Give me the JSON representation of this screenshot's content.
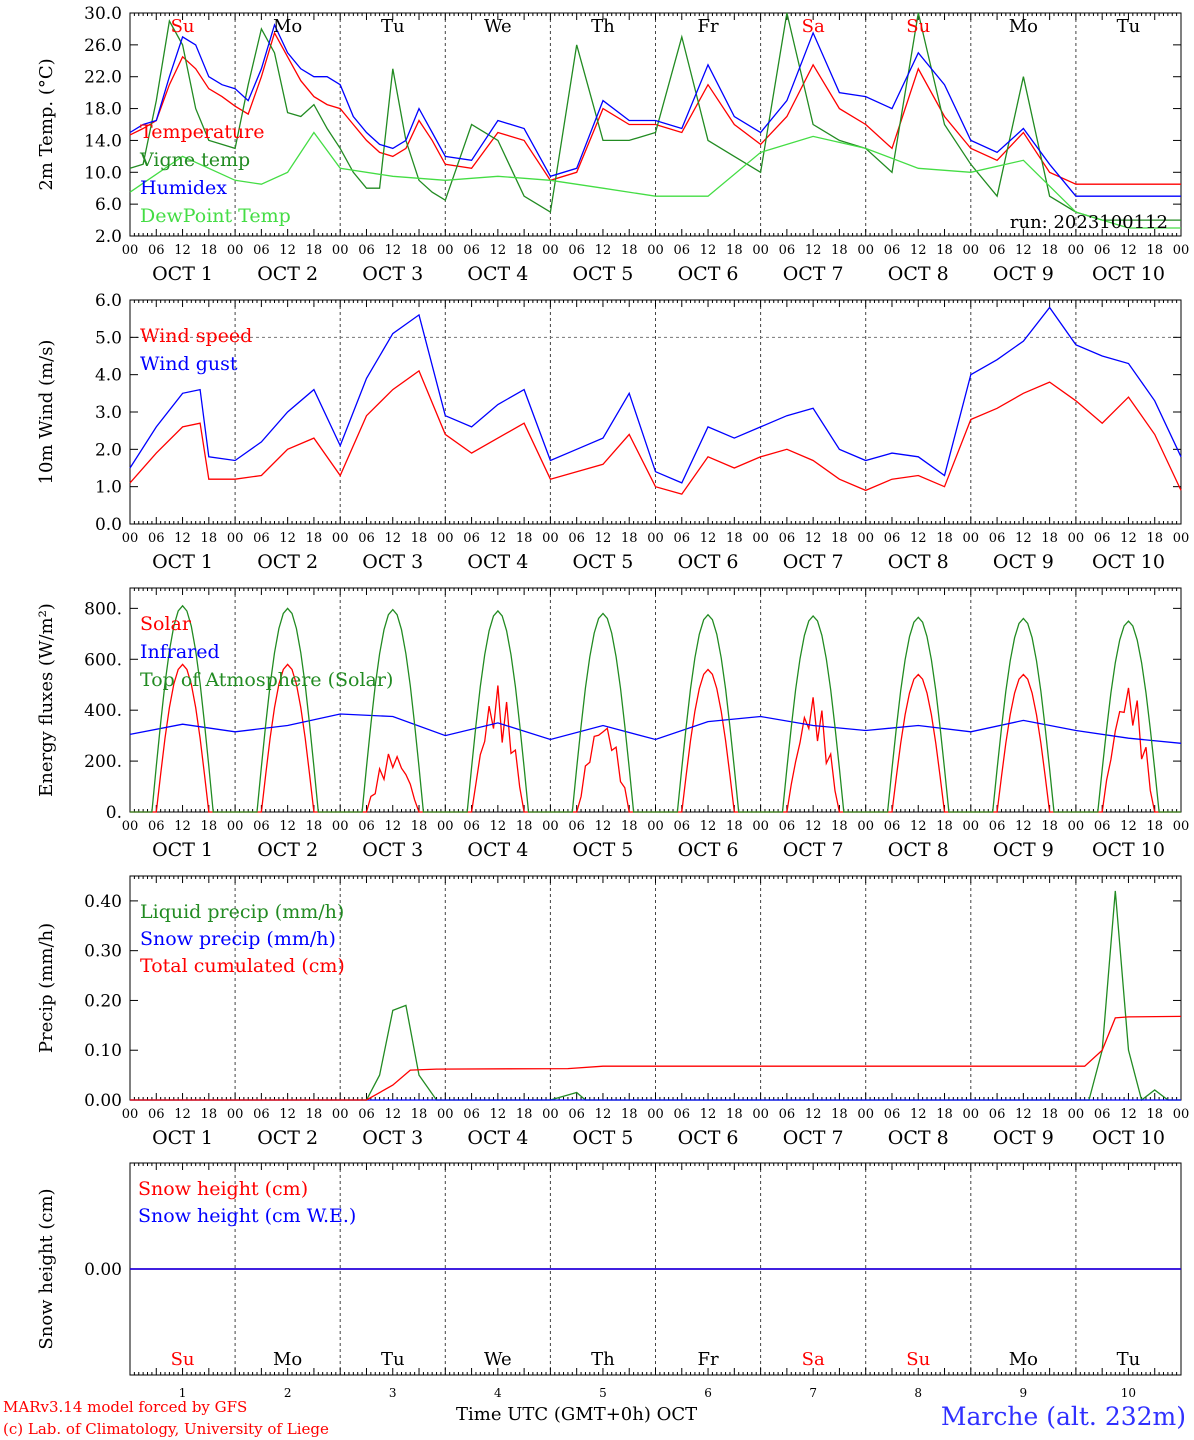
{
  "meta": {
    "run_label": "run: 2023100112",
    "footer_model": "MARv3.14 model forced by GFS",
    "footer_lab": "(c) Lab. of Climatology, University of Liege",
    "footer_xlabel": "Time UTC (GMT+0h) OCT",
    "footer_station": "Marche (alt. 232m)"
  },
  "axis": {
    "hour_ticks": [
      "00",
      "06",
      "12",
      "18"
    ],
    "final_tick": "00",
    "days": [
      1,
      2,
      3,
      4,
      5,
      6,
      7,
      8,
      9,
      10
    ],
    "month": "OCT",
    "weekdays": [
      {
        "label": "Su",
        "color": "#ff0000"
      },
      {
        "label": "Mo",
        "color": "#000000"
      },
      {
        "label": "Tu",
        "color": "#000000"
      },
      {
        "label": "We",
        "color": "#000000"
      },
      {
        "label": "Th",
        "color": "#000000"
      },
      {
        "label": "Fr",
        "color": "#000000"
      },
      {
        "label": "Sa",
        "color": "#ff0000"
      },
      {
        "label": "Su",
        "color": "#ff0000"
      },
      {
        "label": "Mo",
        "color": "#000000"
      },
      {
        "label": "Tu",
        "color": "#000000"
      }
    ]
  },
  "chart_data": [
    {
      "type": "line",
      "ylabel": "2m Temp. (°C)",
      "ylim": [
        2,
        30
      ],
      "yticks": [
        "2.0",
        "6.0",
        "10.0",
        "14.0",
        "18.0",
        "22.0",
        "26.0",
        "30.0"
      ],
      "x_unit": "hours since Oct 1 00 UTC",
      "refline": null,
      "series": [
        {
          "name": "Temperature",
          "color": "#ff0000",
          "x": [
            0,
            3,
            6,
            9,
            12,
            15,
            18,
            21,
            24,
            27,
            30,
            33,
            36,
            39,
            42,
            45,
            48,
            51,
            54,
            57,
            60,
            63,
            66,
            69,
            72,
            78,
            84,
            90,
            96,
            102,
            108,
            114,
            120,
            126,
            132,
            138,
            144,
            150,
            156,
            162,
            168,
            174,
            180,
            186,
            192,
            198,
            204,
            210,
            216,
            222,
            228,
            234,
            240
          ],
          "values": [
            14.7,
            15.5,
            16.5,
            21,
            24.5,
            23,
            20.5,
            19.5,
            18.3,
            17.3,
            22,
            27.5,
            24.5,
            21.5,
            19.5,
            18.5,
            18,
            16,
            14,
            12.5,
            12,
            13,
            16.5,
            14,
            11,
            10.5,
            15,
            14,
            9,
            10,
            18,
            16,
            16,
            15,
            21,
            16,
            13.5,
            17,
            23.5,
            18,
            16,
            13,
            23,
            17,
            13,
            11.5,
            15,
            10,
            8.5,
            8.5,
            8.5,
            8.5,
            8.5
          ],
          "note": "approximate daily cycle"
        },
        {
          "name": "Vigne temp",
          "color": "#228b22",
          "x": [
            0,
            3,
            6,
            9,
            12,
            15,
            18,
            21,
            24,
            27,
            30,
            33,
            36,
            39,
            42,
            45,
            48,
            51,
            54,
            57,
            60,
            63,
            66,
            69,
            72,
            78,
            84,
            90,
            96,
            102,
            108,
            114,
            120,
            126,
            132,
            138,
            144,
            150,
            156,
            162,
            168,
            174,
            180,
            186,
            192,
            198,
            204,
            210,
            216,
            222,
            228,
            234,
            240
          ],
          "values": [
            10.5,
            11,
            19,
            29,
            26,
            18,
            14,
            13.5,
            13,
            21,
            28,
            25,
            17.5,
            17,
            18.5,
            15.5,
            13,
            10,
            8,
            8,
            23,
            14,
            9,
            7.5,
            6.5,
            16,
            14,
            7,
            5,
            26,
            14,
            14,
            15,
            27,
            14,
            12,
            10,
            30,
            16,
            14,
            13,
            10,
            30,
            16,
            11,
            7,
            22,
            7,
            5,
            4,
            4,
            4,
            4
          ]
        },
        {
          "name": "Humidex",
          "color": "#0000ff",
          "x": [
            0,
            3,
            6,
            9,
            12,
            15,
            18,
            21,
            24,
            27,
            30,
            33,
            36,
            39,
            42,
            45,
            48,
            51,
            54,
            57,
            60,
            63,
            66,
            69,
            72,
            78,
            84,
            90,
            96,
            102,
            108,
            114,
            120,
            126,
            132,
            138,
            144,
            150,
            156,
            162,
            168,
            174,
            180,
            186,
            192,
            198,
            204,
            210,
            216,
            222,
            228,
            234,
            240
          ],
          "values": [
            15,
            16,
            16.5,
            22,
            27,
            26,
            22,
            21,
            20.5,
            19,
            23,
            28.5,
            25,
            23,
            22,
            22,
            21,
            17,
            15,
            13.5,
            13,
            14,
            18,
            15,
            12,
            11.5,
            16.5,
            15.5,
            9.5,
            10.5,
            19,
            16.5,
            16.5,
            15.5,
            23.5,
            17,
            15,
            19,
            27.5,
            20,
            19.5,
            18,
            25,
            21,
            14,
            12.5,
            15.5,
            11,
            7,
            7,
            7,
            7,
            7
          ]
        },
        {
          "name": "DewPoint Temp",
          "color": "#44dd44",
          "x": [
            0,
            12,
            24,
            30,
            36,
            42,
            48,
            60,
            72,
            84,
            96,
            108,
            120,
            132,
            144,
            156,
            168,
            180,
            192,
            204,
            216,
            228,
            240
          ],
          "values": [
            7.5,
            12,
            9,
            8.5,
            10,
            15,
            10.5,
            9.5,
            9,
            9.5,
            9,
            8,
            7,
            7,
            12.5,
            14.5,
            13,
            10.5,
            10,
            11.5,
            5,
            3,
            3
          ]
        }
      ],
      "legend": [
        "Temperature",
        "Vigne temp",
        "Humidex",
        "DewPoint Temp"
      ],
      "grid": "vertical dashed at midnights"
    },
    {
      "type": "line",
      "ylabel": "10m Wind (m/s)",
      "ylim": [
        0,
        6
      ],
      "yticks": [
        "0.0",
        "1.0",
        "2.0",
        "3.0",
        "4.0",
        "5.0",
        "6.0"
      ],
      "refline": 5,
      "series": [
        {
          "name": "Wind speed",
          "color": "#ff0000",
          "x": [
            0,
            6,
            12,
            16,
            18,
            24,
            30,
            36,
            42,
            48,
            54,
            60,
            66,
            72,
            78,
            84,
            90,
            96,
            102,
            108,
            114,
            120,
            126,
            132,
            138,
            144,
            150,
            156,
            162,
            168,
            174,
            180,
            186,
            192,
            198,
            204,
            210,
            216,
            222,
            228,
            234,
            240
          ],
          "values": [
            1.1,
            1.9,
            2.6,
            2.7,
            1.2,
            1.2,
            1.3,
            2,
            2.3,
            1.3,
            2.9,
            3.6,
            4.1,
            2.4,
            1.9,
            2.3,
            2.7,
            1.2,
            1.4,
            1.6,
            2.4,
            1.0,
            0.8,
            1.8,
            1.5,
            1.8,
            2.0,
            1.7,
            1.2,
            0.9,
            1.2,
            1.3,
            1.0,
            2.8,
            3.1,
            3.5,
            3.8,
            3.3,
            2.7,
            3.4,
            2.4,
            0.9
          ]
        },
        {
          "name": "Wind gust",
          "color": "#0000ff",
          "x": [
            0,
            6,
            12,
            16,
            18,
            24,
            30,
            36,
            42,
            48,
            54,
            60,
            66,
            72,
            78,
            84,
            90,
            96,
            102,
            108,
            114,
            120,
            126,
            132,
            138,
            144,
            150,
            156,
            162,
            168,
            174,
            180,
            186,
            192,
            198,
            204,
            210,
            216,
            222,
            228,
            234,
            240
          ],
          "values": [
            1.5,
            2.6,
            3.5,
            3.6,
            1.8,
            1.7,
            2.2,
            3.0,
            3.6,
            2.1,
            3.9,
            5.1,
            5.6,
            2.9,
            2.6,
            3.2,
            3.6,
            1.7,
            2.0,
            2.3,
            3.5,
            1.4,
            1.1,
            2.6,
            2.3,
            2.6,
            2.9,
            3.1,
            2.0,
            1.7,
            1.9,
            1.8,
            1.3,
            4.0,
            4.4,
            4.9,
            5.8,
            4.8,
            4.5,
            4.3,
            3.3,
            1.8
          ]
        }
      ],
      "legend": [
        "Wind speed",
        "Wind gust"
      ]
    },
    {
      "type": "line",
      "ylabel": "Energy fluxes (W/m²)",
      "ylim": [
        0,
        880
      ],
      "yticks": [
        "0.",
        "200.",
        "400.",
        "600.",
        "800."
      ],
      "refline": null,
      "series": [
        {
          "name": "Solar",
          "color": "#ff0000",
          "peaks": [
            580,
            580,
            240,
            500,
            370,
            560,
            460,
            540,
            540,
            510
          ],
          "note": "daily peak near 12 UTC"
        },
        {
          "name": "Infrared",
          "color": "#0000ff",
          "x": [
            0,
            12,
            24,
            36,
            48,
            60,
            72,
            84,
            96,
            108,
            120,
            132,
            144,
            156,
            168,
            180,
            192,
            204,
            216,
            228,
            240
          ],
          "values": [
            305,
            345,
            315,
            340,
            385,
            375,
            300,
            350,
            285,
            340,
            285,
            355,
            375,
            340,
            320,
            340,
            315,
            360,
            320,
            290,
            270
          ]
        },
        {
          "name": "Top of Atmosphere (Solar)",
          "color": "#228b22",
          "peaks": [
            810,
            800,
            795,
            790,
            780,
            775,
            770,
            765,
            760,
            750
          ],
          "note": "daily peak near 12 UTC"
        }
      ],
      "legend": [
        "Solar",
        "Infrared",
        "Top of Atmosphere (Solar)"
      ]
    },
    {
      "type": "line",
      "ylabel": "Precip (mm/h)",
      "ylim": [
        0,
        0.45
      ],
      "yticks": [
        "0.00",
        "0.10",
        "0.20",
        "0.30",
        "0.40"
      ],
      "refline": null,
      "series": [
        {
          "name": "Liquid precip (mm/h)",
          "color": "#228b22",
          "x": [
            0,
            50,
            54,
            57,
            60,
            63,
            66,
            70,
            96,
            100,
            102,
            104,
            108,
            120,
            219,
            222,
            225,
            228,
            231,
            234,
            237,
            240
          ],
          "values": [
            0,
            0,
            0.0,
            0.05,
            0.18,
            0.19,
            0.05,
            0,
            0,
            0.01,
            0.015,
            0,
            0,
            0,
            0,
            0.1,
            0.42,
            0.1,
            0,
            0.02,
            0,
            0
          ]
        },
        {
          "name": "Snow precip (mm/h)",
          "color": "#0000ff",
          "x": [
            0,
            240
          ],
          "values": [
            0,
            0
          ]
        },
        {
          "name": "Total cumulated (cm)",
          "color": "#ff0000",
          "x": [
            0,
            54,
            60,
            64,
            70,
            100,
            108,
            218,
            222,
            225,
            228,
            240
          ],
          "values": [
            0,
            0,
            0.03,
            0.06,
            0.062,
            0.063,
            0.068,
            0.068,
            0.1,
            0.165,
            0.167,
            0.168
          ]
        }
      ],
      "legend": [
        "Liquid precip (mm/h)",
        "Snow precip (mm/h)",
        "Total cumulated (cm)"
      ]
    },
    {
      "type": "line",
      "ylabel": "Snow height (cm)",
      "ylim": [
        -1,
        1
      ],
      "yticks": [
        "0.00"
      ],
      "refline": null,
      "series": [
        {
          "name": "Snow height (cm)",
          "color": "#ff0000",
          "x": [
            0,
            240
          ],
          "values": [
            0,
            0
          ]
        },
        {
          "name": "Snow height (cm W.E.)",
          "color": "#0000ff",
          "x": [
            0,
            240
          ],
          "values": [
            0,
            0
          ]
        }
      ],
      "legend": [
        "Snow height (cm)",
        "Snow height (cm W.E.)"
      ]
    }
  ]
}
